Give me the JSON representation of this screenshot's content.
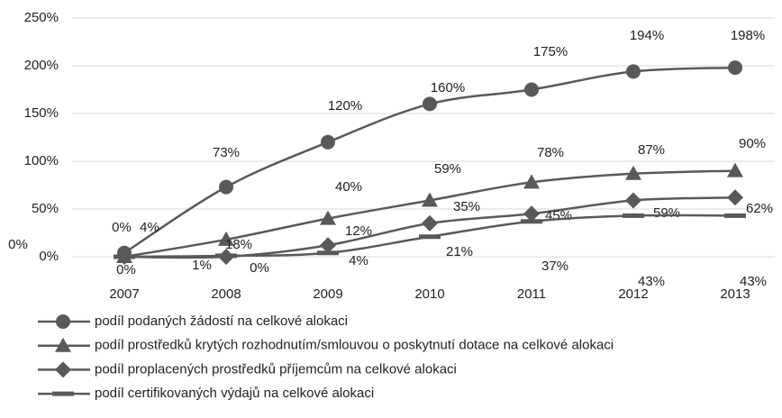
{
  "chart_data": {
    "type": "line",
    "categories": [
      "2007",
      "2008",
      "2009",
      "2010",
      "2011",
      "2012",
      "2013"
    ],
    "ylim": [
      0,
      250
    ],
    "yticks": [
      {
        "value": 0,
        "label": "0%"
      },
      {
        "value": 50,
        "label": "50%"
      },
      {
        "value": 100,
        "label": "100%"
      },
      {
        "value": 150,
        "label": "150%"
      },
      {
        "value": 200,
        "label": "200%"
      },
      {
        "value": 250,
        "label": "250%"
      }
    ],
    "grid": true,
    "legend": "bottom",
    "series": [
      {
        "name": "podíl podaných žádostí na celkové alokaci",
        "color": "#595959",
        "marker": "circle",
        "values": [
          4,
          73,
          120,
          160,
          175,
          194,
          198
        ],
        "value_labels": [
          "4%",
          "73%",
          "120%",
          "160%",
          "175%",
          "194%",
          "198%"
        ]
      },
      {
        "name": "podíl prostředků krytých rozhodnutím/smlouvou o poskytnutí dotace na celkové alokaci",
        "color": "#595959",
        "marker": "triangle",
        "values": [
          0,
          18,
          40,
          59,
          78,
          87,
          90
        ],
        "value_labels": [
          "0%",
          "18%",
          "40%",
          "59%",
          "78%",
          "87%",
          "90%"
        ]
      },
      {
        "name": "podíl proplacených prostředků příjemcům na celkové alokaci",
        "color": "#595959",
        "marker": "diamond",
        "values": [
          0,
          0,
          12,
          35,
          45,
          59,
          62
        ],
        "value_labels": [
          "0%",
          "0%",
          "12%",
          "35%",
          "45%",
          "59%",
          "62%"
        ]
      },
      {
        "name": "podíl certifikovaných výdajů na celkové alokaci",
        "color": "#595959",
        "marker": "dash",
        "values": [
          0,
          1,
          4,
          21,
          37,
          43,
          43
        ],
        "value_labels": [
          "0%",
          "1%",
          "4%",
          "21%",
          "37%",
          "43%",
          "43%"
        ]
      }
    ]
  }
}
